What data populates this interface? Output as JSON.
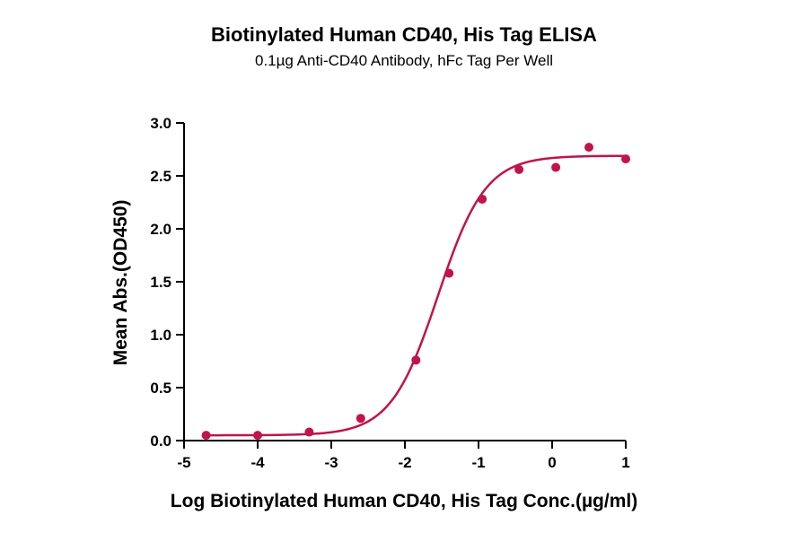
{
  "chart_data": {
    "type": "scatter",
    "title": "Biotinylated Human CD40, His Tag ELISA",
    "subtitle": "0.1µg Anti-CD40 Antibody, hFc Tag Per Well",
    "xlabel": "Log Biotinylated Human CD40, His Tag Conc.(µg/ml)",
    "ylabel": "Mean Abs.(OD450)",
    "xlim": [
      -5,
      1
    ],
    "ylim": [
      0,
      3
    ],
    "x_ticks": [
      -5,
      -4,
      -3,
      -2,
      -1,
      0,
      1
    ],
    "x_tick_labels": [
      "-5",
      "-4",
      "-3",
      "-2",
      "-1",
      "0",
      "1"
    ],
    "y_ticks": [
      0,
      0.5,
      1,
      1.5,
      2,
      2.5,
      3
    ],
    "y_tick_labels": [
      "0.0",
      "0.5",
      "1.0",
      "1.5",
      "2.0",
      "2.5",
      "3.0"
    ],
    "grid": false,
    "legend": "none",
    "color": "#c0144a",
    "series": [
      {
        "x": [
          -4.7,
          -4.0,
          -3.3,
          -2.6,
          -1.85,
          -1.4,
          -0.95,
          -0.45,
          0.05,
          0.5,
          1.0
        ],
        "y": [
          0.05,
          0.05,
          0.08,
          0.21,
          0.76,
          1.58,
          2.28,
          2.56,
          2.58,
          2.77,
          2.66
        ]
      }
    ],
    "fit_curve": {
      "model": "4PL",
      "bottom": 0.05,
      "top": 2.69,
      "log_ec50": -1.55,
      "hill_slope": 1.35
    }
  }
}
